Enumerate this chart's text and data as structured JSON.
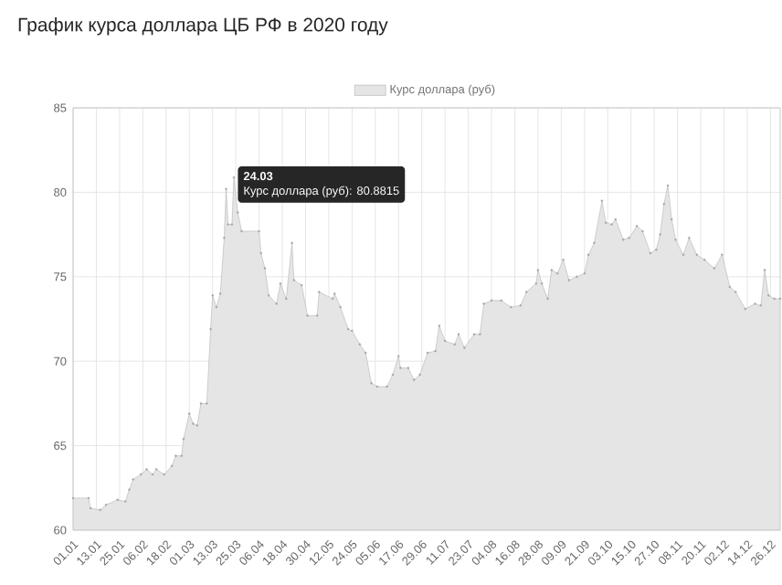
{
  "chart_data": {
    "type": "area",
    "title": "График курса доллара ЦБ РФ в 2020 году",
    "series": [
      {
        "name": "Курс доллара (руб)",
        "color": "#a8a8a8",
        "x": [
          "2020-01-01",
          "2020-01-09",
          "2020-01-10",
          "2020-01-15",
          "2020-01-18",
          "2020-01-24",
          "2020-01-28",
          "2020-01-30",
          "2020-02-01",
          "2020-02-05",
          "2020-02-08",
          "2020-02-11",
          "2020-02-13",
          "2020-02-17",
          "2020-02-21",
          "2020-02-23",
          "2020-02-26",
          "2020-02-27",
          "2020-03-01",
          "2020-03-03",
          "2020-03-05",
          "2020-03-07",
          "2020-03-10",
          "2020-03-12",
          "2020-03-13",
          "2020-03-15",
          "2020-03-17",
          "2020-03-19",
          "2020-03-20",
          "2020-03-21",
          "2020-03-23",
          "2020-03-24",
          "2020-03-26",
          "2020-03-28",
          "2020-04-06",
          "2020-04-07",
          "2020-04-09",
          "2020-04-11",
          "2020-04-15",
          "2020-04-17",
          "2020-04-20",
          "2020-04-23",
          "2020-04-24",
          "2020-04-28",
          "2020-05-01",
          "2020-05-06",
          "2020-05-07",
          "2020-05-14",
          "2020-05-15",
          "2020-05-18",
          "2020-05-22",
          "2020-05-24",
          "2020-05-28",
          "2020-05-31",
          "2020-06-03",
          "2020-06-06",
          "2020-06-11",
          "2020-06-14",
          "2020-06-17",
          "2020-06-18",
          "2020-06-22",
          "2020-06-25",
          "2020-06-28",
          "2020-07-02",
          "2020-07-06",
          "2020-07-08",
          "2020-07-11",
          "2020-07-16",
          "2020-07-18",
          "2020-07-21",
          "2020-07-26",
          "2020-07-29",
          "2020-07-31",
          "2020-08-04",
          "2020-08-09",
          "2020-08-14",
          "2020-08-19",
          "2020-08-22",
          "2020-08-27",
          "2020-08-28",
          "2020-08-30",
          "2020-09-02",
          "2020-09-04",
          "2020-09-07",
          "2020-09-10",
          "2020-09-13",
          "2020-09-17",
          "2020-09-21",
          "2020-09-23",
          "2020-09-26",
          "2020-09-30",
          "2020-10-02",
          "2020-10-05",
          "2020-10-07",
          "2020-10-11",
          "2020-10-14",
          "2020-10-18",
          "2020-10-21",
          "2020-10-25",
          "2020-10-28",
          "2020-10-30",
          "2020-11-01",
          "2020-11-03",
          "2020-11-05",
          "2020-11-07",
          "2020-11-11",
          "2020-11-14",
          "2020-11-18",
          "2020-11-22",
          "2020-11-27",
          "2020-12-01",
          "2020-12-05",
          "2020-12-08",
          "2020-12-13",
          "2020-12-18",
          "2020-12-21",
          "2020-12-23",
          "2020-12-25",
          "2020-12-28",
          "2020-12-31"
        ],
        "values": [
          61.9,
          61.9,
          61.3,
          61.2,
          61.5,
          61.8,
          61.7,
          62.4,
          63.0,
          63.3,
          63.6,
          63.3,
          63.6,
          63.3,
          63.8,
          64.4,
          64.4,
          65.4,
          66.9,
          66.3,
          66.2,
          67.5,
          67.5,
          71.9,
          73.9,
          73.2,
          74.0,
          77.3,
          80.2,
          78.1,
          78.1,
          80.8815,
          78.8,
          77.7,
          77.7,
          76.4,
          75.5,
          73.9,
          73.4,
          74.6,
          73.7,
          77.0,
          74.8,
          74.5,
          72.7,
          72.7,
          74.1,
          73.7,
          74.0,
          73.2,
          71.9,
          71.8,
          71.0,
          70.5,
          68.7,
          68.5,
          68.5,
          69.2,
          70.3,
          69.6,
          69.6,
          68.9,
          69.2,
          70.5,
          70.6,
          72.1,
          71.2,
          71.0,
          71.6,
          70.8,
          71.6,
          71.6,
          73.4,
          73.6,
          73.6,
          73.2,
          73.3,
          74.1,
          74.6,
          75.4,
          74.6,
          73.7,
          75.4,
          75.2,
          76.0,
          74.8,
          75.0,
          75.2,
          76.3,
          77.0,
          79.5,
          78.2,
          78.1,
          78.4,
          77.2,
          77.3,
          78.0,
          77.7,
          76.4,
          76.6,
          77.5,
          79.3,
          80.4,
          78.4,
          77.2,
          76.3,
          77.3,
          76.3,
          76.0,
          75.5,
          76.3,
          74.4,
          74.1,
          73.1,
          73.4,
          73.3,
          75.4,
          73.9,
          73.7,
          73.7
        ]
      }
    ],
    "xlim": [
      "2020-01-01",
      "2020-12-31"
    ],
    "xticks": [
      {
        "value": "2020-01-01",
        "label": "01.01"
      },
      {
        "value": "2020-01-13",
        "label": "13.01"
      },
      {
        "value": "2020-01-25",
        "label": "25.01"
      },
      {
        "value": "2020-02-06",
        "label": "06.02"
      },
      {
        "value": "2020-02-18",
        "label": "18.02"
      },
      {
        "value": "2020-03-01",
        "label": "01.03"
      },
      {
        "value": "2020-03-13",
        "label": "13.03"
      },
      {
        "value": "2020-03-25",
        "label": "25.03"
      },
      {
        "value": "2020-04-06",
        "label": "06.04"
      },
      {
        "value": "2020-04-18",
        "label": "18.04"
      },
      {
        "value": "2020-04-30",
        "label": "30.04"
      },
      {
        "value": "2020-05-12",
        "label": "12.05"
      },
      {
        "value": "2020-05-24",
        "label": "24.05"
      },
      {
        "value": "2020-06-05",
        "label": "05.06"
      },
      {
        "value": "2020-06-17",
        "label": "17.06"
      },
      {
        "value": "2020-06-29",
        "label": "29.06"
      },
      {
        "value": "2020-07-11",
        "label": "11.07"
      },
      {
        "value": "2020-07-23",
        "label": "23.07"
      },
      {
        "value": "2020-08-04",
        "label": "04.08"
      },
      {
        "value": "2020-08-16",
        "label": "16.08"
      },
      {
        "value": "2020-08-28",
        "label": "28.08"
      },
      {
        "value": "2020-09-09",
        "label": "09.09"
      },
      {
        "value": "2020-09-21",
        "label": "21.09"
      },
      {
        "value": "2020-10-03",
        "label": "03.10"
      },
      {
        "value": "2020-10-15",
        "label": "15.10"
      },
      {
        "value": "2020-10-27",
        "label": "27.10"
      },
      {
        "value": "2020-11-08",
        "label": "08.11"
      },
      {
        "value": "2020-11-20",
        "label": "20.11"
      },
      {
        "value": "2020-12-02",
        "label": "02.12"
      },
      {
        "value": "2020-12-14",
        "label": "14.12"
      },
      {
        "value": "2020-12-26",
        "label": "26.12"
      }
    ],
    "ylim": [
      60,
      85
    ],
    "yticks": [
      60,
      65,
      70,
      75,
      80,
      85
    ],
    "grid": true,
    "legend": "top",
    "marker": "circle",
    "annotations": [
      {
        "text": "24.03",
        "x": "2020-03-24",
        "y": 80.8815
      },
      "Курс доллара (руб): 80.8815"
    ]
  }
}
